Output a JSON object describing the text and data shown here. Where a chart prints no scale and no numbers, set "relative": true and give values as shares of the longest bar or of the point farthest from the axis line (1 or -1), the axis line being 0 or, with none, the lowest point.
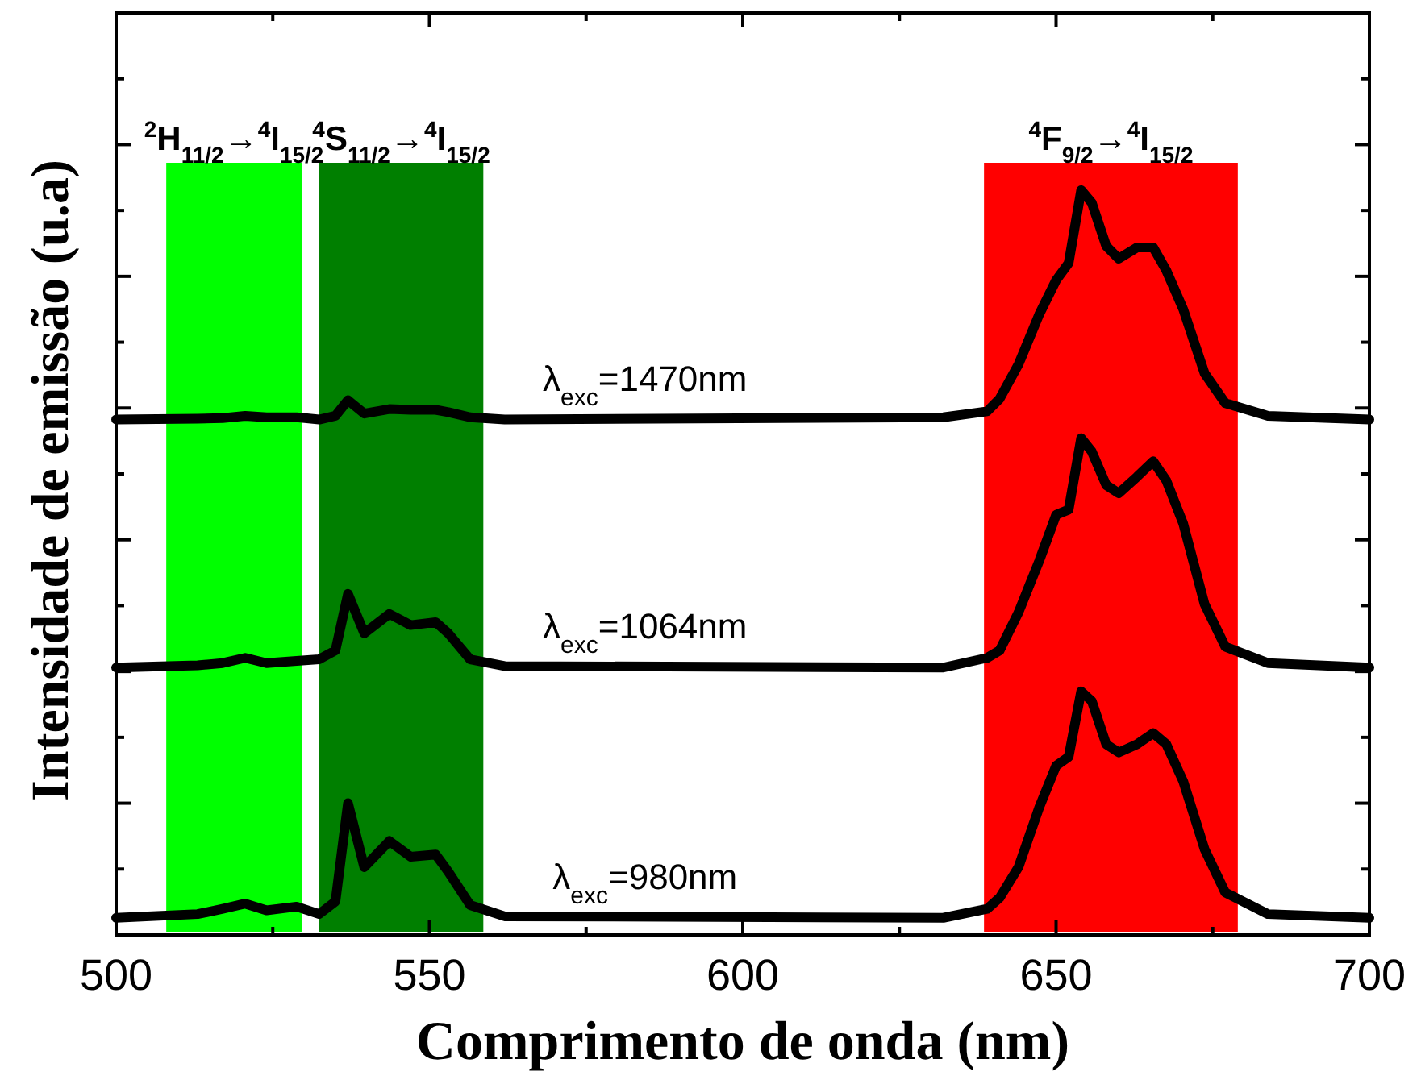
{
  "chart_data": {
    "type": "line",
    "relative": true,
    "xlabel": "Comprimento de onda (nm)",
    "ylabel": "Intensidade de emissão (u.a)",
    "xlim": [
      500,
      700
    ],
    "xticks": [
      500,
      {
        "value": 525,
        "label": null
      },
      550,
      {
        "value": 575,
        "label": null
      },
      600,
      {
        "value": 625,
        "label": null
      },
      650,
      {
        "value": 675,
        "label": null
      },
      700
    ],
    "x": [
      500,
      513,
      517,
      520.6,
      524,
      528.8,
      532.4,
      535,
      537,
      539.6,
      543.6,
      547,
      551,
      553,
      556.5,
      562,
      632,
      639,
      641,
      644,
      647.3,
      650,
      652,
      654,
      655.7,
      658,
      660,
      662.9,
      665.5,
      667.6,
      670.3,
      673.7,
      677,
      683.8,
      700
    ],
    "line_style": "solid",
    "marker": "none",
    "series": [
      {
        "name": "λ$_{exc}$=1470nm",
        "color": "#000000",
        "values": [
          0.692,
          0.693,
          0.694,
          0.697,
          0.695,
          0.695,
          0.692,
          0.697,
          0.718,
          0.7,
          0.706,
          0.705,
          0.705,
          0.702,
          0.695,
          0.692,
          0.695,
          0.703,
          0.72,
          0.766,
          0.833,
          0.879,
          0.902,
          1,
          0.983,
          0.925,
          0.908,
          0.923,
          0.923,
          0.892,
          0.84,
          0.754,
          0.714,
          0.697,
          0.692
        ]
      },
      {
        "name": "λ$_{exc}$=1064nm",
        "color": "#000000",
        "values": [
          0.359,
          0.362,
          0.365,
          0.372,
          0.365,
          0.368,
          0.37,
          0.382,
          0.458,
          0.405,
          0.431,
          0.416,
          0.42,
          0.405,
          0.37,
          0.361,
          0.359,
          0.372,
          0.382,
          0.433,
          0.502,
          0.564,
          0.571,
          0.667,
          0.649,
          0.604,
          0.593,
          0.615,
          0.636,
          0.61,
          0.552,
          0.444,
          0.387,
          0.365,
          0.359
        ]
      },
      {
        "name": "λ$_{exc}$=980nm",
        "color": "#000000",
        "values": [
          0.023,
          0.028,
          0.035,
          0.042,
          0.033,
          0.038,
          0.028,
          0.045,
          0.177,
          0.091,
          0.126,
          0.105,
          0.108,
          0.085,
          0.04,
          0.025,
          0.023,
          0.035,
          0.05,
          0.091,
          0.171,
          0.227,
          0.239,
          0.327,
          0.314,
          0.256,
          0.245,
          0.256,
          0.271,
          0.256,
          0.206,
          0.115,
          0.057,
          0.028,
          0.023
        ]
      }
    ],
    "bands": [
      {
        "axis": "x",
        "from": 508,
        "to": 529.6,
        "label": "$^{2}$H$_{11/2}$→$^{4}$I$_{15/2}$",
        "color": "#00ff00"
      },
      {
        "axis": "x",
        "from": 532.4,
        "to": 558.6,
        "label": "$^{4}$S$_{11/2}$→$^{4}$I$_{15/2}$",
        "color": "#007f00"
      },
      {
        "axis": "x",
        "from": 638.5,
        "to": 679,
        "label": "$^{4}$F$_{9/2}$→$^{4}$I$_{15/2}$",
        "color": "#ff0000"
      }
    ]
  }
}
